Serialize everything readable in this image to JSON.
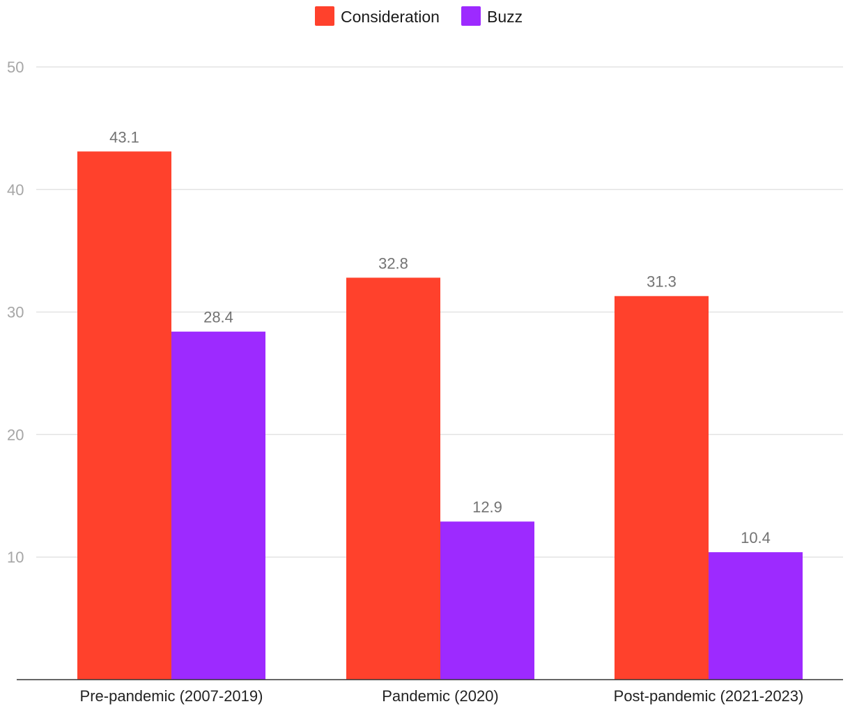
{
  "chart_data": {
    "type": "bar",
    "title": "",
    "xlabel": "",
    "ylabel": "",
    "categories": [
      "Pre-pandemic (2007-2019)",
      "Pandemic (2020)",
      "Post-pandemic (2021-2023)"
    ],
    "series": [
      {
        "name": "Consideration",
        "color": "#ff412c",
        "values": [
          43.1,
          32.8,
          31.3
        ],
        "labels": [
          "43.1",
          "32.8",
          "31.3"
        ]
      },
      {
        "name": "Buzz",
        "color": "#9d2aff",
        "values": [
          28.4,
          12.9,
          10.4
        ],
        "labels": [
          "28.4",
          "12.9",
          "10.4"
        ]
      }
    ],
    "ylim": [
      0,
      50
    ],
    "yticks": [
      10,
      20,
      30,
      40,
      50
    ],
    "ytick_labels": [
      "10",
      "20",
      "30",
      "40",
      "50"
    ],
    "grid": true,
    "legend_position": "top-center"
  }
}
